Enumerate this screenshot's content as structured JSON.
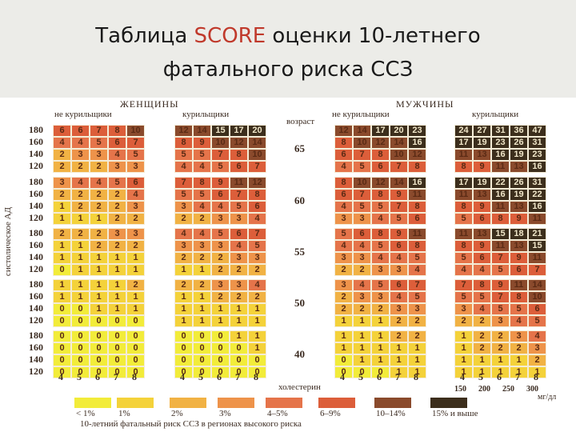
{
  "slide": {
    "title_line1_prefix": "Таблица ",
    "title_line1_highlight": "SCORE",
    "title_line1_suffix": " оценки 10-летнего",
    "title_line2": "фатального риска ССЗ"
  },
  "table": {
    "women_header": "ЖЕНЩИНЫ",
    "men_header": "МУЖЧИНЫ",
    "nonsmokers": "не курильщики",
    "smokers": "курильщики",
    "age_header": "возраст",
    "side_label": "систолическое АД",
    "cholesterol_label": "холестерин",
    "sbp_levels": [
      "180",
      "160",
      "140",
      "120"
    ],
    "chol_values": [
      "4",
      "5",
      "6",
      "7",
      "8"
    ],
    "men_mmol": [
      "150",
      "200",
      "250",
      "300"
    ],
    "men_mmol_unit": "мг/дл",
    "age_groups": [
      {
        "age": "65",
        "wn": [
          [
            6,
            6,
            7,
            8,
            10
          ],
          [
            4,
            4,
            5,
            6,
            7
          ],
          [
            2,
            3,
            3,
            4,
            5
          ],
          [
            2,
            2,
            2,
            3,
            3
          ]
        ],
        "ws": [
          [
            12,
            14,
            15,
            17,
            20
          ],
          [
            8,
            9,
            10,
            12,
            14
          ],
          [
            5,
            5,
            7,
            8,
            10
          ],
          [
            4,
            4,
            5,
            6,
            7
          ]
        ],
        "mn": [
          [
            12,
            14,
            17,
            20,
            23
          ],
          [
            8,
            10,
            12,
            14,
            16
          ],
          [
            6,
            7,
            8,
            10,
            12
          ],
          [
            4,
            5,
            6,
            7,
            8
          ]
        ],
        "ms": [
          [
            24,
            27,
            31,
            36,
            47
          ],
          [
            17,
            19,
            23,
            26,
            31
          ],
          [
            11,
            13,
            16,
            19,
            23
          ],
          [
            8,
            9,
            11,
            13,
            16
          ]
        ]
      },
      {
        "age": "60",
        "wn": [
          [
            3,
            4,
            4,
            5,
            6
          ],
          [
            2,
            2,
            2,
            2,
            4
          ],
          [
            1,
            2,
            2,
            2,
            3
          ],
          [
            1,
            1,
            1,
            2,
            2
          ]
        ],
        "ws": [
          [
            7,
            8,
            9,
            11,
            12
          ],
          [
            5,
            5,
            6,
            7,
            8
          ],
          [
            3,
            4,
            4,
            5,
            6
          ],
          [
            2,
            2,
            3,
            3,
            4
          ]
        ],
        "mn": [
          [
            8,
            10,
            12,
            14,
            16
          ],
          [
            6,
            7,
            8,
            9,
            11
          ],
          [
            4,
            5,
            5,
            7,
            8
          ],
          [
            3,
            3,
            4,
            5,
            6
          ]
        ],
        "ms": [
          [
            17,
            19,
            22,
            26,
            31
          ],
          [
            11,
            13,
            16,
            19,
            22
          ],
          [
            8,
            9,
            11,
            13,
            16
          ],
          [
            5,
            6,
            8,
            9,
            11
          ]
        ]
      },
      {
        "age": "55",
        "wn": [
          [
            2,
            2,
            2,
            3,
            3
          ],
          [
            1,
            1,
            2,
            2,
            2
          ],
          [
            1,
            1,
            1,
            1,
            1
          ],
          [
            0,
            1,
            1,
            1,
            1
          ]
        ],
        "ws": [
          [
            4,
            4,
            5,
            6,
            7
          ],
          [
            3,
            3,
            3,
            4,
            5
          ],
          [
            2,
            2,
            2,
            3,
            3
          ],
          [
            1,
            1,
            2,
            2,
            2
          ]
        ],
        "mn": [
          [
            5,
            6,
            8,
            9,
            11
          ],
          [
            4,
            4,
            5,
            6,
            8
          ],
          [
            3,
            3,
            4,
            4,
            5
          ],
          [
            2,
            2,
            3,
            3,
            4
          ]
        ],
        "ms": [
          [
            11,
            13,
            15,
            18,
            21
          ],
          [
            8,
            9,
            11,
            13,
            15
          ],
          [
            5,
            6,
            7,
            9,
            11
          ],
          [
            4,
            4,
            5,
            6,
            7
          ]
        ]
      },
      {
        "age": "50",
        "wn": [
          [
            1,
            1,
            1,
            1,
            2
          ],
          [
            1,
            1,
            1,
            1,
            1
          ],
          [
            0,
            0,
            1,
            1,
            1
          ],
          [
            0,
            0,
            0,
            0,
            0
          ]
        ],
        "ws": [
          [
            2,
            2,
            3,
            3,
            4
          ],
          [
            1,
            1,
            2,
            2,
            2
          ],
          [
            1,
            1,
            1,
            1,
            1
          ],
          [
            1,
            1,
            1,
            1,
            1
          ]
        ],
        "mn": [
          [
            3,
            4,
            5,
            6,
            7
          ],
          [
            2,
            3,
            3,
            4,
            5
          ],
          [
            2,
            2,
            2,
            3,
            3
          ],
          [
            1,
            1,
            1,
            2,
            2
          ]
        ],
        "ms": [
          [
            7,
            8,
            9,
            11,
            14
          ],
          [
            5,
            5,
            7,
            8,
            10
          ],
          [
            3,
            4,
            5,
            5,
            6
          ],
          [
            2,
            2,
            3,
            4,
            5
          ]
        ]
      },
      {
        "age": "40",
        "wn": [
          [
            0,
            0,
            0,
            0,
            0
          ],
          [
            0,
            0,
            0,
            0,
            0
          ],
          [
            0,
            0,
            0,
            0,
            0
          ],
          [
            0,
            0,
            0,
            0,
            0
          ]
        ],
        "ws": [
          [
            0,
            0,
            0,
            1,
            1
          ],
          [
            0,
            0,
            0,
            0,
            1
          ],
          [
            0,
            0,
            0,
            0,
            0
          ],
          [
            0,
            0,
            0,
            0,
            0
          ]
        ],
        "mn": [
          [
            1,
            1,
            1,
            2,
            2
          ],
          [
            1,
            1,
            1,
            1,
            1
          ],
          [
            0,
            1,
            1,
            1,
            1
          ],
          [
            0,
            0,
            0,
            1,
            1
          ]
        ],
        "ms": [
          [
            1,
            2,
            2,
            3,
            4
          ],
          [
            1,
            2,
            2,
            2,
            3
          ],
          [
            1,
            1,
            1,
            1,
            2
          ],
          [
            1,
            1,
            1,
            1,
            1
          ]
        ]
      }
    ]
  },
  "legend": {
    "caption": "10-летний фатальный риск ССЗ в регионах высокого риска",
    "items": [
      {
        "label": "< 1%",
        "color": "#f2ec3a"
      },
      {
        "label": "1%",
        "color": "#f4d23a"
      },
      {
        "label": "2%",
        "color": "#f1b244"
      },
      {
        "label": "3%",
        "color": "#ee934a"
      },
      {
        "label": "4–5%",
        "color": "#e5744a"
      },
      {
        "label": "6–9%",
        "color": "#dc5e3a"
      },
      {
        "label": "10–14%",
        "color": "#8a4a2c"
      },
      {
        "label": "15% и выше",
        "color": "#3c2e1c"
      }
    ]
  }
}
